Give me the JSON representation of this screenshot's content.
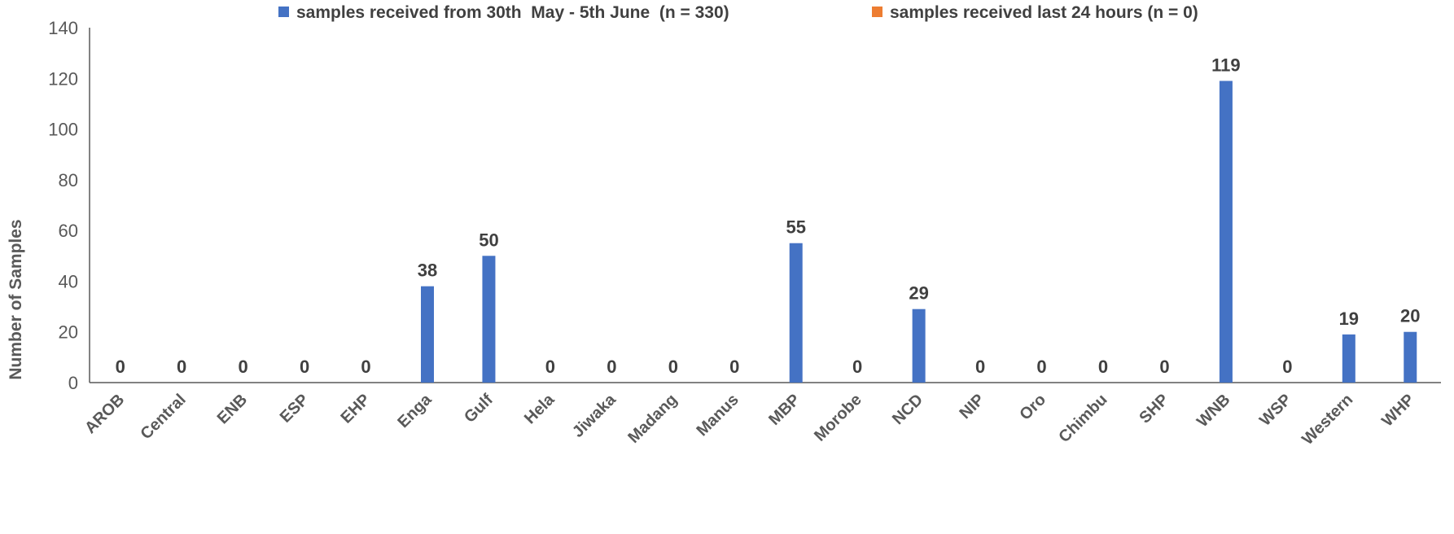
{
  "chart_data": {
    "type": "bar",
    "title": "",
    "xlabel": "",
    "ylabel": "Number of Samples",
    "ylim": [
      0,
      140
    ],
    "yticks": [
      0,
      20,
      40,
      60,
      80,
      100,
      120,
      140
    ],
    "grid": false,
    "legend_position": "top",
    "categories": [
      "AROB",
      "Central",
      "ENB",
      "ESP",
      "EHP",
      "Enga",
      "Gulf",
      "Hela",
      "Jiwaka",
      "Madang",
      "Manus",
      "MBP",
      "Morobe",
      "NCD",
      "NIP",
      "Oro",
      "Chimbu",
      "SHP",
      "WNB",
      "WSP",
      "Western",
      "WHP"
    ],
    "series": [
      {
        "name": "samples received from 30th  May - 5th June  (n = 330)",
        "color": "#4472c4",
        "values": [
          0,
          0,
          0,
          0,
          0,
          38,
          50,
          0,
          0,
          0,
          0,
          55,
          0,
          29,
          0,
          0,
          0,
          0,
          119,
          0,
          19,
          20
        ]
      },
      {
        "name": "samples received last 24 hours (n = 0)",
        "color": "#ed7d31",
        "values": [
          0,
          0,
          0,
          0,
          0,
          0,
          0,
          0,
          0,
          0,
          0,
          0,
          0,
          0,
          0,
          0,
          0,
          0,
          0,
          0,
          0,
          0
        ]
      }
    ]
  }
}
